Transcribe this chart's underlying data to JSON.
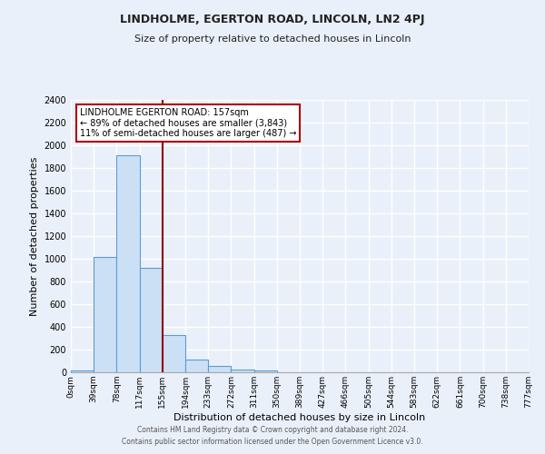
{
  "title": "LINDHOLME, EGERTON ROAD, LINCOLN, LN2 4PJ",
  "subtitle": "Size of property relative to detached houses in Lincoln",
  "xlabel": "Distribution of detached houses by size in Lincoln",
  "ylabel": "Number of detached properties",
  "bin_labels": [
    "0sqm",
    "39sqm",
    "78sqm",
    "117sqm",
    "155sqm",
    "194sqm",
    "233sqm",
    "272sqm",
    "311sqm",
    "350sqm",
    "389sqm",
    "427sqm",
    "466sqm",
    "505sqm",
    "544sqm",
    "583sqm",
    "622sqm",
    "661sqm",
    "700sqm",
    "738sqm",
    "777sqm"
  ],
  "bar_values": [
    20,
    1020,
    1910,
    920,
    325,
    110,
    55,
    25,
    20,
    0,
    0,
    0,
    0,
    0,
    0,
    0,
    0,
    0,
    0,
    0
  ],
  "bar_color": "#cce0f5",
  "bar_edge_color": "#5b9bd5",
  "background_color": "#eaf0fa",
  "grid_color": "#ffffff",
  "vline_x": 157,
  "vline_color": "#8b0000",
  "annotation_title": "LINDHOLME EGERTON ROAD: 157sqm",
  "annotation_line1": "← 89% of detached houses are smaller (3,843)",
  "annotation_line2": "11% of semi-detached houses are larger (487) →",
  "annotation_box_color": "#ffffff",
  "annotation_box_edge": "#aa0000",
  "ylim": [
    0,
    2400
  ],
  "yticks": [
    0,
    200,
    400,
    600,
    800,
    1000,
    1200,
    1400,
    1600,
    1800,
    2000,
    2200,
    2400
  ],
  "footer_line1": "Contains HM Land Registry data © Crown copyright and database right 2024.",
  "footer_line2": "Contains public sector information licensed under the Open Government Licence v3.0.",
  "bin_width": 39
}
